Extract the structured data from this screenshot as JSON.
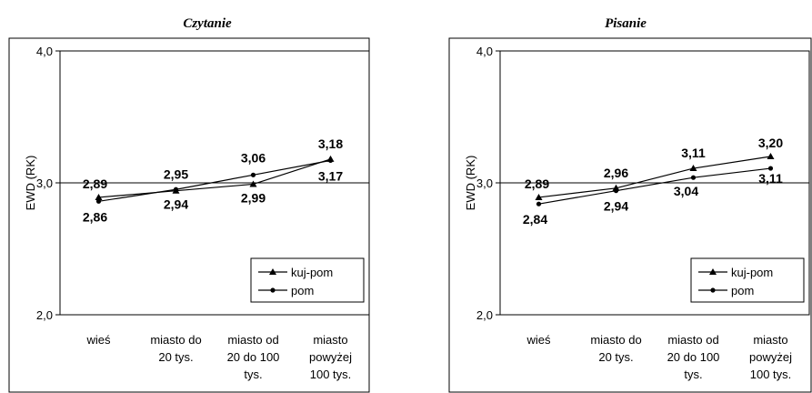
{
  "chart_data": [
    {
      "type": "line",
      "title": "Czytanie",
      "ylabel": "EWD (RK)",
      "xlabel": "",
      "ylim": [
        2.0,
        4.0
      ],
      "yticks": [
        "2,0",
        "3,0",
        "4,0"
      ],
      "reference_line": 3.0,
      "categories": [
        [
          "wieś"
        ],
        [
          "miasto do",
          "20 tys."
        ],
        [
          "miasto od",
          "20 do 100",
          "tys."
        ],
        [
          "miasto",
          "powyżej",
          "100 tys."
        ]
      ],
      "series": [
        {
          "name": "kuj-pom",
          "marker": "triangle",
          "values": [
            2.89,
            2.94,
            2.99,
            3.18
          ],
          "labels": [
            "2,89",
            "2,94",
            "2,99",
            "3,18"
          ]
        },
        {
          "name": "pom",
          "marker": "circle",
          "values": [
            2.86,
            2.95,
            3.06,
            3.17
          ],
          "labels": [
            "2,86",
            "2,95",
            "3,06",
            "3,17"
          ]
        }
      ],
      "legend": "bottom-right"
    },
    {
      "type": "line",
      "title": "Pisanie",
      "ylabel": "EWD (RK)",
      "xlabel": "",
      "ylim": [
        2.0,
        4.0
      ],
      "yticks": [
        "2,0",
        "3,0",
        "4,0"
      ],
      "reference_line": 3.0,
      "categories": [
        [
          "wieś"
        ],
        [
          "miasto do",
          "20 tys."
        ],
        [
          "miasto od",
          "20 do 100",
          "tys."
        ],
        [
          "miasto",
          "powyżej",
          "100 tys."
        ]
      ],
      "series": [
        {
          "name": "kuj-pom",
          "marker": "triangle",
          "values": [
            2.89,
            2.96,
            3.11,
            3.2
          ],
          "labels": [
            "2,89",
            "2,96",
            "3,11",
            "3,20"
          ]
        },
        {
          "name": "pom",
          "marker": "circle",
          "values": [
            2.84,
            2.94,
            3.04,
            3.11
          ],
          "labels": [
            "2,84",
            "2,94",
            "3,04",
            "3,11"
          ]
        }
      ],
      "legend": "bottom-right"
    }
  ]
}
